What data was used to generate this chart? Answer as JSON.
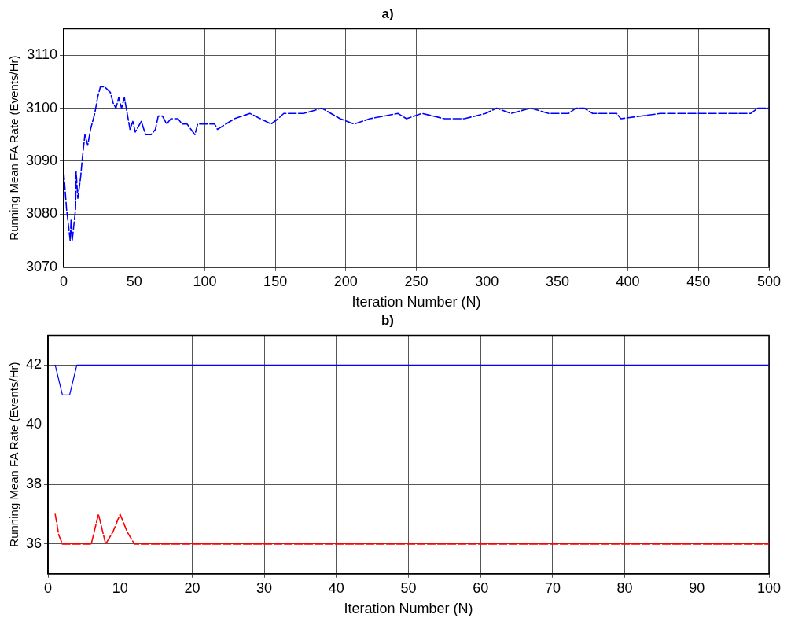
{
  "chart_data": [
    {
      "type": "line",
      "title": "a)",
      "xlabel": "Iteration Number (N)",
      "ylabel": "Running Mean FA Rate (Events/Hr)",
      "xlim": [
        0,
        500
      ],
      "xticks": [
        0,
        50,
        100,
        150,
        200,
        250,
        300,
        350,
        400,
        450,
        500
      ],
      "ylim": [
        3070,
        3115
      ],
      "yticks": [
        3070,
        3080,
        3090,
        3100,
        3110
      ],
      "grid": true,
      "legend": false,
      "line_style": "dashed",
      "marker": "none",
      "series": [
        {
          "color": "#0000ff",
          "x": [
            0,
            2,
            4.6,
            5.2,
            6,
            8.4,
            8.8,
            10,
            12,
            13,
            15,
            17,
            19,
            22,
            24,
            26,
            29,
            33,
            35,
            37,
            39,
            41,
            43,
            47,
            49,
            50.7,
            55,
            58,
            62,
            65,
            67,
            70,
            73,
            76,
            81,
            84,
            87.5,
            93,
            95,
            107,
            109,
            121,
            132,
            147,
            152,
            156,
            170,
            183,
            196,
            206,
            217,
            237,
            243,
            254,
            270,
            284,
            299,
            307,
            317,
            331,
            344,
            358,
            363,
            369,
            375,
            392,
            395,
            423,
            487,
            492,
            500
          ],
          "values": [
            3088,
            3081,
            3075,
            3079,
            3075,
            3081,
            3088,
            3083,
            3087,
            3090,
            3095,
            3093,
            3096,
            3099,
            3102,
            3104,
            3104,
            3103,
            3101,
            3100,
            3102,
            3100,
            3102,
            3096,
            3097.5,
            3095.5,
            3097.5,
            3095,
            3095,
            3096,
            3098.5,
            3098.5,
            3097,
            3098,
            3098,
            3097,
            3097,
            3095,
            3097,
            3097,
            3096,
            3098,
            3099,
            3097,
            3098,
            3099,
            3099,
            3100,
            3098,
            3097,
            3098,
            3099,
            3098,
            3099,
            3098,
            3098,
            3099,
            3100,
            3099,
            3100,
            3099,
            3099,
            3100,
            3100,
            3099,
            3099,
            3098,
            3099,
            3099,
            3100,
            3100
          ]
        }
      ]
    },
    {
      "type": "line",
      "title": "b)",
      "xlabel": "Iteration Number (N)",
      "ylabel": "Running Mean FA Rate (Events/Hr)",
      "xlim": [
        0,
        100
      ],
      "xticks": [
        0,
        10,
        20,
        30,
        40,
        50,
        60,
        70,
        80,
        90,
        100
      ],
      "ylim": [
        35,
        43
      ],
      "yticks": [
        36,
        38,
        40,
        42
      ],
      "grid": true,
      "legend": false,
      "marker": "none",
      "series": [
        {
          "color": "#0000ff",
          "line_style": "solid",
          "x": [
            1,
            2,
            3,
            4,
            100
          ],
          "values": [
            42,
            41,
            41,
            42,
            42
          ]
        },
        {
          "color": "#ff0000",
          "line_style": "dashed",
          "x": [
            1,
            1.5,
            2,
            3,
            4,
            5,
            6,
            7,
            8,
            9,
            10,
            11,
            12,
            100
          ],
          "values": [
            37,
            36.3,
            36,
            36,
            36,
            36,
            36,
            37,
            36,
            36.4,
            37,
            36.4,
            36,
            36
          ]
        }
      ]
    }
  ]
}
